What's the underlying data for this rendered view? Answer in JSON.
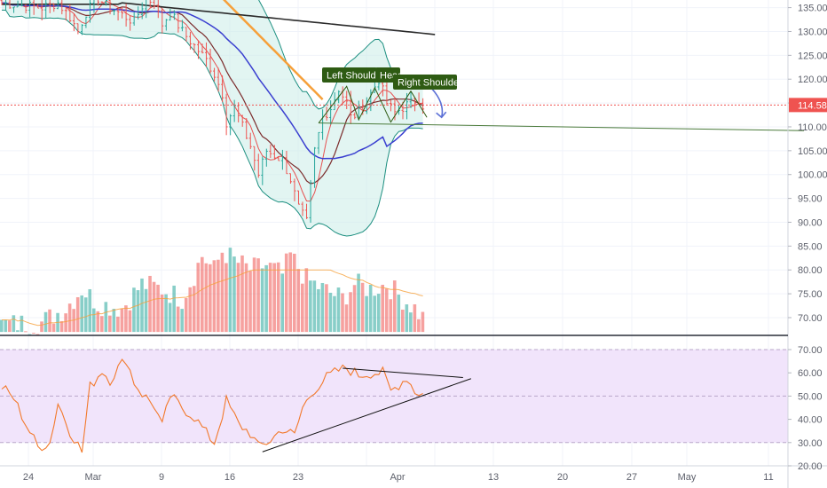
{
  "chart_data": {
    "type": "candlestick",
    "instrument_timeframe": "daily",
    "colors": {
      "up": "#26a69a",
      "down": "#ef5350",
      "bb_band": "#1d8f80",
      "bb_fill": "#cfeeea",
      "ma_slow": "#2b2b2b",
      "ma_orange": "#f6a03a",
      "ma_blue": "#3a3fd0",
      "ma_dark": "#7b2c2c",
      "ma_red": "#e65050",
      "rsi_line": "#f2792b",
      "rsi_band": "#f1e4fb",
      "pattern_label_bg": "#2e5b13",
      "price_tag": "#ef5350"
    },
    "x_axis": {
      "tick_labels": [
        "24",
        "Mar",
        "9",
        "16",
        "23",
        "Apr",
        "13",
        "20",
        "27",
        "May",
        "11"
      ]
    },
    "price_axis": {
      "tick_labels": [
        "135.00",
        "130.00",
        "125.00",
        "120.00",
        "115.00",
        "110.00",
        "105.00",
        "100.00",
        "95.00",
        "90.00",
        "85.00",
        "80.00",
        "75.00",
        "70.00"
      ],
      "range": [
        67,
        137
      ],
      "last_price": 114.58,
      "last_price_label": "114.58"
    },
    "rsi_axis": {
      "tick_labels": [
        "70.00",
        "60.00",
        "50.00",
        "40.00",
        "30.00",
        "20.00"
      ],
      "range": [
        18,
        72
      ],
      "upper_band": 70,
      "lower_band": 30
    },
    "annotations": {
      "left_shoulder": "Left Shoulde",
      "head": "Head",
      "right_shoulder": "Right Shoulder",
      "neckline": {
        "start": {
          "bar": 79,
          "price": 110.8
        },
        "end": {
          "bar": 200,
          "price": 109.2
        }
      },
      "rsi_resistance": {
        "start": {
          "bar": 85,
          "value": 62
        },
        "end": {
          "bar": 115,
          "value": 58
        }
      },
      "rsi_support": {
        "start": {
          "bar": 65,
          "value": 26
        },
        "end": {
          "bar": 117,
          "value": 57.5
        }
      },
      "forecast_arrow": {
        "start": {
          "bar": 106,
          "price": 118.5
        },
        "end": {
          "bar": 109,
          "price": 112
        }
      }
    },
    "bars_estimated": {
      "anchor_closes": [
        [
          0,
          136
        ],
        [
          5,
          135.5
        ],
        [
          10,
          135
        ],
        [
          14,
          136
        ],
        [
          17,
          133
        ],
        [
          19,
          130
        ],
        [
          21,
          134
        ],
        [
          24,
          137
        ],
        [
          26,
          135.5
        ],
        [
          29,
          134
        ],
        [
          33,
          132
        ],
        [
          36,
          137
        ],
        [
          38,
          136
        ],
        [
          40,
          131.5
        ],
        [
          42,
          134
        ],
        [
          45,
          130
        ],
        [
          48,
          127
        ],
        [
          51,
          124
        ],
        [
          53,
          121
        ],
        [
          55,
          117
        ],
        [
          56,
          111
        ],
        [
          58,
          114
        ],
        [
          60,
          110
        ],
        [
          62,
          106
        ],
        [
          64,
          100
        ],
        [
          66,
          105
        ],
        [
          68,
          104
        ],
        [
          70,
          103
        ],
        [
          72,
          99
        ],
        [
          74,
          93
        ],
        [
          76,
          90
        ],
        [
          78,
          105
        ],
        [
          80,
          112
        ],
        [
          82,
          114
        ],
        [
          84,
          118
        ],
        [
          86,
          115
        ],
        [
          87,
          112
        ],
        [
          89,
          113
        ],
        [
          92,
          117
        ],
        [
          94,
          120
        ],
        [
          96,
          115
        ],
        [
          98,
          113
        ],
        [
          101,
          114.6
        ],
        [
          104,
          116
        ],
        [
          105,
          114.5
        ]
      ],
      "volume_anchors": [
        [
          0,
          68.5
        ],
        [
          10,
          69
        ],
        [
          16,
          72
        ],
        [
          20,
          76
        ],
        [
          24,
          73
        ],
        [
          30,
          72
        ],
        [
          35,
          77
        ],
        [
          40,
          76
        ],
        [
          45,
          74
        ],
        [
          48,
          79
        ],
        [
          50,
          83
        ],
        [
          53,
          80
        ],
        [
          55,
          84
        ],
        [
          58,
          82
        ],
        [
          62,
          80
        ],
        [
          66,
          81
        ],
        [
          70,
          79
        ],
        [
          72,
          83
        ],
        [
          76,
          78
        ],
        [
          80,
          76
        ],
        [
          85,
          74
        ],
        [
          88,
          77
        ],
        [
          92,
          76
        ],
        [
          96,
          77
        ],
        [
          100,
          74
        ],
        [
          103,
          72
        ],
        [
          105,
          70
        ]
      ],
      "rsi_anchors": [
        [
          0,
          54
        ],
        [
          3,
          49
        ],
        [
          6,
          38
        ],
        [
          9,
          28
        ],
        [
          12,
          30
        ],
        [
          14,
          47
        ],
        [
          17,
          35
        ],
        [
          20,
          26
        ],
        [
          22,
          54
        ],
        [
          25,
          61
        ],
        [
          27,
          57
        ],
        [
          29,
          62
        ],
        [
          31,
          66
        ],
        [
          33,
          56
        ],
        [
          35,
          51
        ],
        [
          38,
          46
        ],
        [
          40,
          37
        ],
        [
          42,
          50
        ],
        [
          45,
          45
        ],
        [
          48,
          41
        ],
        [
          51,
          34
        ],
        [
          53,
          30
        ],
        [
          56,
          48
        ],
        [
          59,
          38
        ],
        [
          62,
          34
        ],
        [
          64,
          28
        ],
        [
          67,
          31
        ],
        [
          70,
          36
        ],
        [
          73,
          33
        ],
        [
          75,
          45
        ],
        [
          78,
          53
        ],
        [
          81,
          58
        ],
        [
          84,
          61
        ],
        [
          86,
          62
        ],
        [
          89,
          59
        ],
        [
          92,
          60
        ],
        [
          95,
          60
        ],
        [
          97,
          52
        ],
        [
          99,
          55
        ],
        [
          101,
          58
        ],
        [
          103,
          52
        ],
        [
          105,
          51
        ]
      ]
    }
  }
}
